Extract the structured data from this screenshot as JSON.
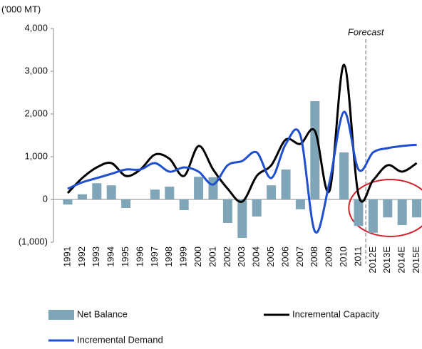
{
  "chart_data": {
    "type": "bar_line",
    "unit_label": "('000 MT)",
    "annotation": "Forecast",
    "categories": [
      "1991",
      "1992",
      "1993",
      "1994",
      "1995",
      "1996",
      "1997",
      "1998",
      "1999",
      "2000",
      "2001",
      "2002",
      "2003",
      "2004",
      "2005",
      "2006",
      "2007",
      "2008",
      "2009",
      "2010",
      "2011",
      "2012E",
      "2013E",
      "2014E",
      "2015E"
    ],
    "series": [
      {
        "name": "Net Balance",
        "type": "bar",
        "color": "#7ea6b8",
        "values": [
          -120,
          120,
          380,
          330,
          -200,
          0,
          230,
          300,
          -250,
          530,
          520,
          -550,
          -900,
          -400,
          330,
          700,
          -230,
          2300,
          0,
          1100,
          -620,
          -780,
          -420,
          -600,
          -420
        ]
      },
      {
        "name": "Incremental Capacity",
        "type": "line",
        "color": "#000000",
        "values": [
          150,
          500,
          750,
          850,
          550,
          700,
          1050,
          950,
          550,
          1250,
          700,
          250,
          -50,
          550,
          800,
          1400,
          1300,
          1600,
          200,
          3150,
          100,
          450,
          800,
          650,
          850
        ]
      },
      {
        "name": "Incremental Demand",
        "type": "line",
        "color": "#1f4fcf",
        "values": [
          250,
          400,
          500,
          600,
          700,
          700,
          850,
          650,
          750,
          650,
          350,
          800,
          900,
          1100,
          500,
          1300,
          1500,
          -750,
          400,
          2050,
          700,
          1100,
          1200,
          1250,
          1280
        ]
      }
    ],
    "ylim": [
      -1000,
      4000
    ],
    "yticks": [
      {
        "value": -1000,
        "label": "(1,000)"
      },
      0,
      {
        "value": 1000,
        "label": "1,000"
      },
      {
        "value": 2000,
        "label": "2,000"
      },
      {
        "value": 3000,
        "label": "3,000"
      },
      {
        "value": 4000,
        "label": "4,000"
      }
    ]
  }
}
